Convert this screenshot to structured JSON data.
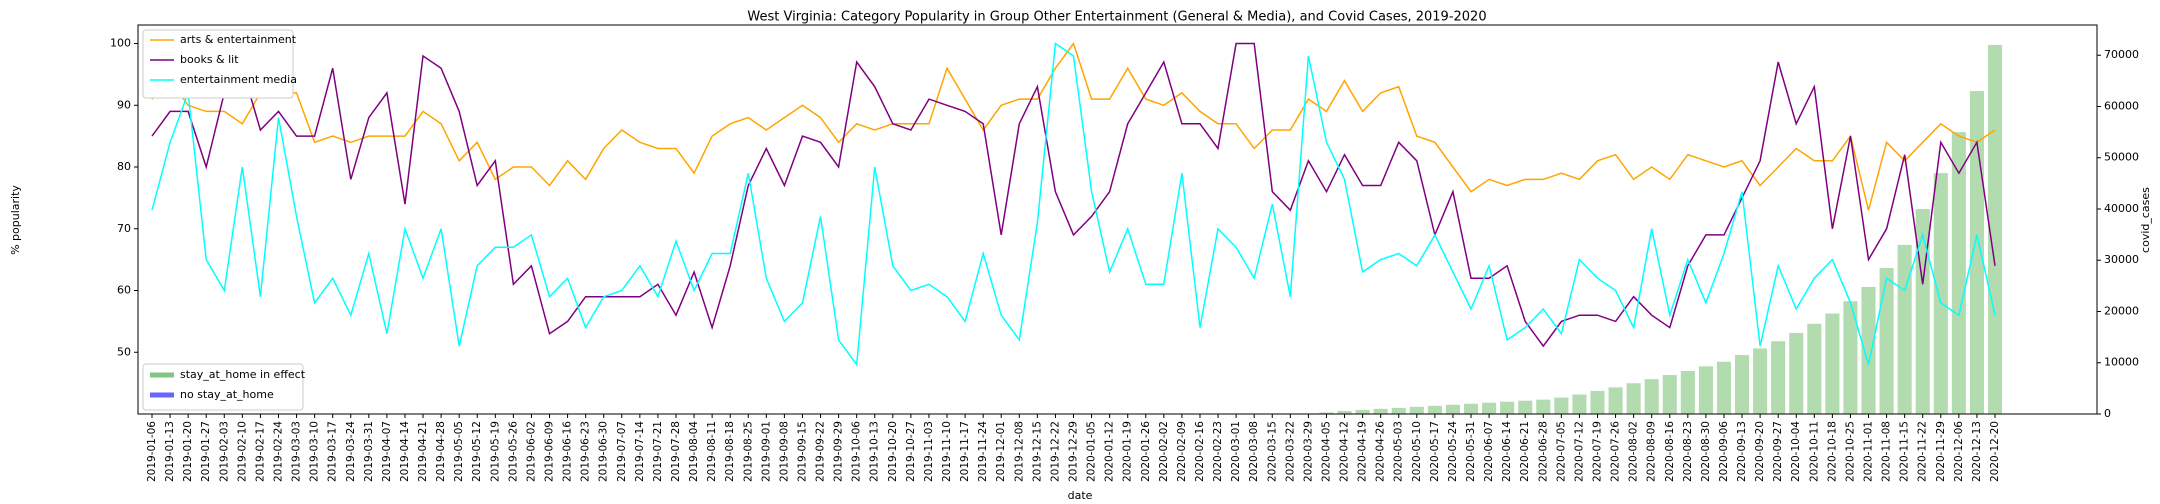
{
  "chart_data": {
    "type": "line",
    "title": "West Virginia: Category Popularity in Group Other Entertainment (General & Media), and Covid Cases, 2019-2020",
    "xlabel": "date",
    "ylabel": "% popularity",
    "y2label": "covid_cases",
    "ylim": [
      40,
      103
    ],
    "yticks": [
      50,
      60,
      70,
      80,
      90,
      100
    ],
    "y2lim": [
      0,
      75900
    ],
    "y2ticks": [
      0,
      10000,
      20000,
      30000,
      40000,
      50000,
      60000,
      70000
    ],
    "legend": "upper left",
    "categories": [
      "2019-01-06",
      "2019-01-13",
      "2019-01-20",
      "2019-01-27",
      "2019-02-03",
      "2019-02-10",
      "2019-02-17",
      "2019-02-24",
      "2019-03-03",
      "2019-03-10",
      "2019-03-17",
      "2019-03-24",
      "2019-03-31",
      "2019-04-07",
      "2019-04-14",
      "2019-04-21",
      "2019-04-28",
      "2019-05-05",
      "2019-05-12",
      "2019-05-19",
      "2019-05-26",
      "2019-06-02",
      "2019-06-09",
      "2019-06-16",
      "2019-06-23",
      "2019-06-30",
      "2019-07-07",
      "2019-07-14",
      "2019-07-21",
      "2019-07-28",
      "2019-08-04",
      "2019-08-11",
      "2019-08-18",
      "2019-08-25",
      "2019-09-01",
      "2019-09-08",
      "2019-09-15",
      "2019-09-22",
      "2019-09-29",
      "2019-10-06",
      "2019-10-13",
      "2019-10-20",
      "2019-10-27",
      "2019-11-03",
      "2019-11-10",
      "2019-11-17",
      "2019-11-24",
      "2019-12-01",
      "2019-12-08",
      "2019-12-15",
      "2019-12-22",
      "2019-12-29",
      "2020-01-05",
      "2020-01-12",
      "2020-01-19",
      "2020-01-26",
      "2020-02-02",
      "2020-02-09",
      "2020-02-16",
      "2020-02-23",
      "2020-03-01",
      "2020-03-08",
      "2020-03-15",
      "2020-03-22",
      "2020-03-29",
      "2020-04-05",
      "2020-04-12",
      "2020-04-19",
      "2020-04-26",
      "2020-05-03",
      "2020-05-10",
      "2020-05-17",
      "2020-05-24",
      "2020-05-31",
      "2020-06-07",
      "2020-06-14",
      "2020-06-21",
      "2020-06-28",
      "2020-07-05",
      "2020-07-12",
      "2020-07-19",
      "2020-07-26",
      "2020-08-02",
      "2020-08-09",
      "2020-08-16",
      "2020-08-23",
      "2020-08-30",
      "2020-09-06",
      "2020-09-13",
      "2020-09-20",
      "2020-09-27",
      "2020-10-04",
      "2020-10-11",
      "2020-10-18",
      "2020-10-25",
      "2020-11-01",
      "2020-11-08",
      "2020-11-15",
      "2020-11-22",
      "2020-11-29",
      "2020-12-06",
      "2020-12-13",
      "2020-12-20"
    ],
    "series": [
      {
        "name": "arts & entertainment",
        "color": "#ffa500",
        "values": [
          91,
          94,
          90,
          89,
          89,
          87,
          92,
          92,
          92,
          84,
          85,
          84,
          85,
          85,
          85,
          89,
          87,
          81,
          84,
          78,
          80,
          80,
          77,
          81,
          78,
          83,
          86,
          84,
          83,
          83,
          79,
          85,
          87,
          88,
          86,
          88,
          90,
          88,
          84,
          87,
          86,
          87,
          87,
          87,
          96,
          91,
          86,
          90,
          91,
          91,
          96,
          100,
          91,
          91,
          96,
          91,
          90,
          92,
          89,
          87,
          87,
          83,
          86,
          86,
          91,
          89,
          94,
          89,
          92,
          93,
          85,
          84,
          80,
          76,
          78,
          77,
          78,
          78,
          79,
          78,
          81,
          82,
          78,
          80,
          78,
          82,
          81,
          80,
          81,
          77,
          80,
          83,
          81,
          81,
          85,
          73,
          84,
          81,
          84,
          87,
          85,
          84,
          86
        ]
      },
      {
        "name": "books & lit",
        "color": "#800080",
        "values": [
          85,
          89,
          89,
          80,
          92,
          96,
          86,
          89,
          85,
          85,
          96,
          78,
          88,
          92,
          74,
          98,
          96,
          89,
          77,
          81,
          61,
          64,
          53,
          55,
          59,
          59,
          59,
          59,
          61,
          56,
          63,
          54,
          64,
          77,
          83,
          77,
          85,
          84,
          80,
          97,
          93,
          87,
          86,
          91,
          90,
          89,
          87,
          69,
          87,
          93,
          76,
          69,
          72,
          76,
          87,
          92,
          97,
          87,
          87,
          83,
          100,
          100,
          76,
          73,
          81,
          76,
          82,
          77,
          77,
          84,
          81,
          69,
          76,
          62,
          62,
          64,
          55,
          51,
          55,
          56,
          56,
          55,
          59,
          56,
          54,
          64,
          69,
          69,
          75,
          81,
          97,
          87,
          93,
          70,
          85,
          65,
          70,
          82,
          61,
          84,
          79,
          84,
          64
        ]
      },
      {
        "name": "entertainment media",
        "color": "#00ffff",
        "values": [
          73,
          84,
          92,
          65,
          60,
          80,
          59,
          88,
          72,
          58,
          62,
          56,
          66,
          53,
          70,
          62,
          70,
          51,
          64,
          67,
          67,
          69,
          59,
          62,
          54,
          59,
          60,
          64,
          59,
          68,
          60,
          66,
          66,
          79,
          62,
          55,
          58,
          72,
          52,
          48,
          80,
          64,
          60,
          61,
          59,
          55,
          66,
          56,
          52,
          71,
          100,
          98,
          76,
          63,
          70,
          61,
          61,
          79,
          54,
          70,
          67,
          62,
          74,
          59,
          98,
          84,
          78,
          63,
          65,
          66,
          64,
          69,
          63,
          57,
          64,
          52,
          54,
          57,
          53,
          65,
          62,
          60,
          54,
          70,
          56,
          65,
          58,
          66,
          76,
          51,
          64,
          57,
          62,
          65,
          58,
          48,
          62,
          60,
          69,
          58,
          56,
          69,
          56
        ]
      },
      {
        "type": "bar",
        "axis": "y2",
        "color": "#b3dbb0",
        "values": [
          0,
          0,
          0,
          0,
          0,
          0,
          0,
          0,
          0,
          0,
          0,
          0,
          0,
          0,
          0,
          0,
          0,
          0,
          0,
          0,
          0,
          0,
          0,
          0,
          0,
          0,
          0,
          0,
          0,
          0,
          0,
          0,
          0,
          0,
          0,
          0,
          0,
          0,
          0,
          0,
          0,
          0,
          0,
          0,
          0,
          0,
          0,
          0,
          0,
          0,
          0,
          0,
          0,
          0,
          0,
          0,
          0,
          0,
          0,
          0,
          0,
          0,
          0,
          0,
          100,
          300,
          600,
          800,
          1000,
          1200,
          1400,
          1600,
          1800,
          2000,
          2200,
          2400,
          2600,
          2800,
          3200,
          3800,
          4500,
          5200,
          6000,
          6800,
          7600,
          8400,
          9300,
          10200,
          11500,
          12800,
          14200,
          15800,
          17600,
          19600,
          22000,
          24800,
          28500,
          33000,
          40000,
          47000,
          55000,
          63000,
          72000
        ]
      }
    ],
    "legend2": {
      "position": "lower left",
      "entries": [
        {
          "name": "stay_at_home in effect",
          "color": "#2ca02c"
        },
        {
          "name": "no stay_at_home",
          "color": "#0000ff"
        }
      ]
    }
  }
}
